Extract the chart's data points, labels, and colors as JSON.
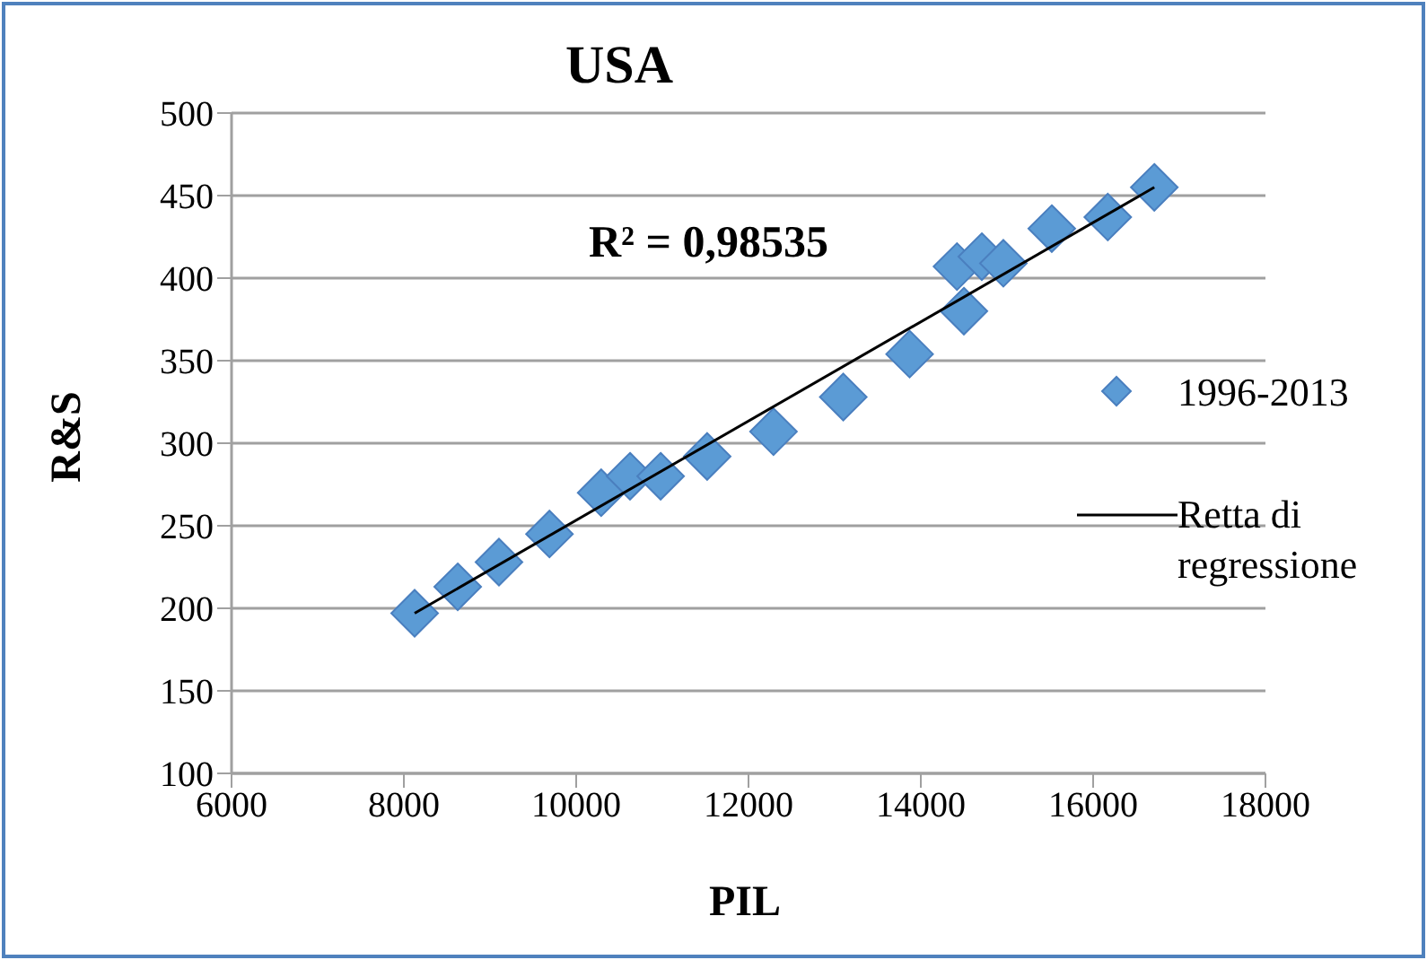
{
  "chart_data": {
    "type": "scatter",
    "title": "USA",
    "xlabel": "PIL",
    "ylabel": "R&S",
    "annotations": [
      "R² = 0,98535"
    ],
    "series": [
      {
        "name": "1996-2013",
        "color": "#5b9bd5",
        "marker": "diamond",
        "x": [
          8125,
          8625,
          9104,
          9690,
          10290,
          10625,
          10980,
          11520,
          12290,
          13100,
          13870,
          14420,
          14500,
          14708,
          14958,
          15520,
          16170,
          16710
        ],
        "values": [
          197,
          213,
          228,
          245,
          270,
          280,
          280,
          292,
          307,
          328,
          354,
          407,
          380,
          413,
          409,
          430,
          437,
          455
        ]
      },
      {
        "name": "Retta di regressione",
        "type": "line",
        "color": "#000000",
        "marker": "none",
        "line_style": "solid",
        "x": [
          8125,
          16710
        ],
        "values": [
          197,
          455
        ]
      }
    ],
    "xlim": [
      6000,
      18000
    ],
    "xticks": [
      6000,
      8000,
      10000,
      12000,
      14000,
      16000,
      18000
    ],
    "ylim": [
      100,
      500
    ],
    "yticks": [
      100,
      150,
      200,
      250,
      300,
      350,
      400,
      450,
      500
    ],
    "grid": "y",
    "legend": "right"
  }
}
